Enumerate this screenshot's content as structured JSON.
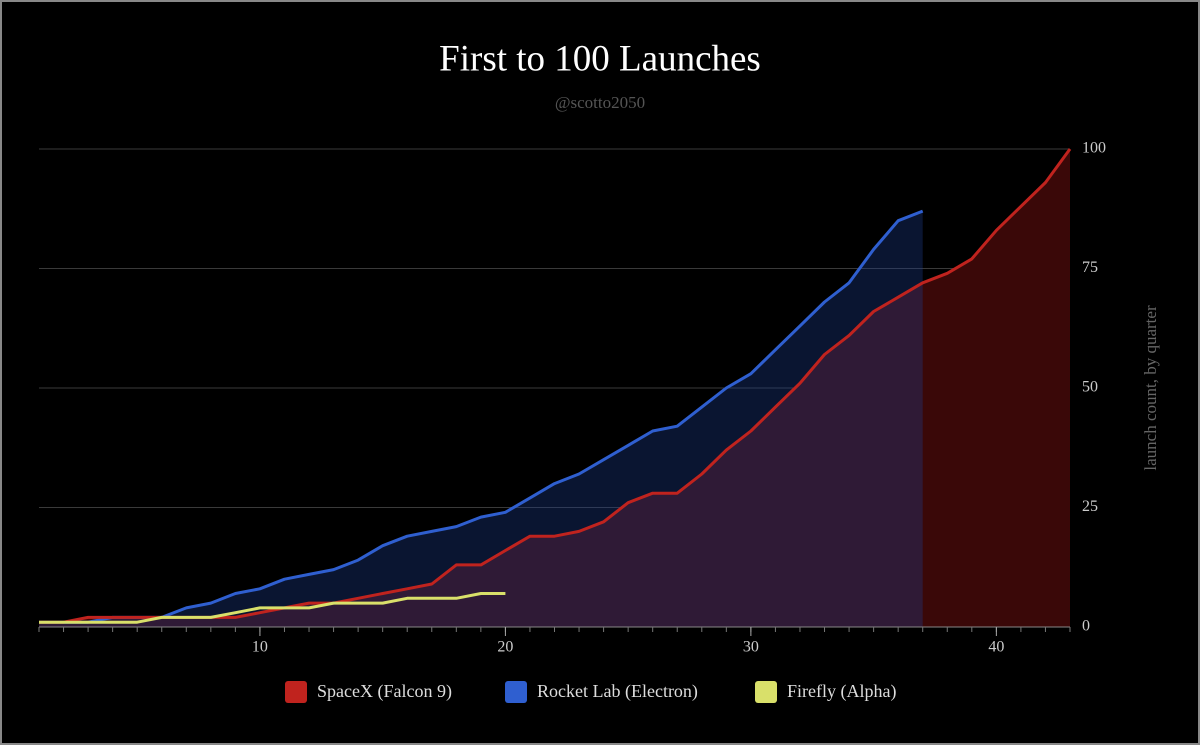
{
  "chart_data": {
    "type": "area",
    "title": "First to 100 Launches",
    "subtitle": "@scotto2050",
    "y_axis_label": "launch count, by quarter",
    "x": [
      1,
      2,
      3,
      4,
      5,
      6,
      7,
      8,
      9,
      10,
      11,
      12,
      13,
      14,
      15,
      16,
      17,
      18,
      19,
      20,
      21,
      22,
      23,
      24,
      25,
      26,
      27,
      28,
      29,
      30,
      31,
      32,
      33,
      34,
      35,
      36,
      37,
      38,
      39,
      40,
      41,
      42,
      43
    ],
    "series": [
      {
        "name": "SpaceX (Falcon 9)",
        "color": "#c0231e",
        "fill": "#3a0808",
        "values": [
          1,
          1,
          2,
          2,
          2,
          2,
          2,
          2,
          2,
          3,
          4,
          5,
          5,
          6,
          7,
          8,
          9,
          13,
          13,
          16,
          19,
          19,
          20,
          22,
          26,
          28,
          28,
          32,
          37,
          41,
          46,
          51,
          57,
          61,
          66,
          69,
          72,
          74,
          77,
          83,
          88,
          93,
          100
        ]
      },
      {
        "name": "Rocket Lab (Electron)",
        "color": "#2f5fd0",
        "fill": "rgba(30,60,140,0.35)",
        "values": [
          1,
          1,
          1,
          2,
          2,
          2,
          4,
          5,
          7,
          8,
          10,
          11,
          12,
          14,
          17,
          19,
          20,
          21,
          23,
          24,
          27,
          30,
          32,
          35,
          38,
          41,
          42,
          46,
          50,
          53,
          58,
          63,
          68,
          72,
          79,
          85,
          87,
          null,
          null,
          null,
          null,
          null,
          null
        ]
      },
      {
        "name": "Firefly (Alpha)",
        "color": "#d9e06a",
        "fill": "none",
        "values": [
          1,
          1,
          1,
          1,
          1,
          2,
          2,
          2,
          3,
          4,
          4,
          4,
          5,
          5,
          5,
          6,
          6,
          6,
          7,
          7,
          null,
          null,
          null,
          null,
          null,
          null,
          null,
          null,
          null,
          null,
          null,
          null,
          null,
          null,
          null,
          null,
          null,
          null,
          null,
          null,
          null,
          null,
          null
        ]
      }
    ],
    "xlim": [
      1,
      43
    ],
    "ylim": [
      0,
      100
    ],
    "xticks": [
      10,
      20,
      30,
      40
    ],
    "yticks": [
      0,
      25,
      50,
      75,
      100
    ],
    "grid": true,
    "legend": "bottom"
  }
}
